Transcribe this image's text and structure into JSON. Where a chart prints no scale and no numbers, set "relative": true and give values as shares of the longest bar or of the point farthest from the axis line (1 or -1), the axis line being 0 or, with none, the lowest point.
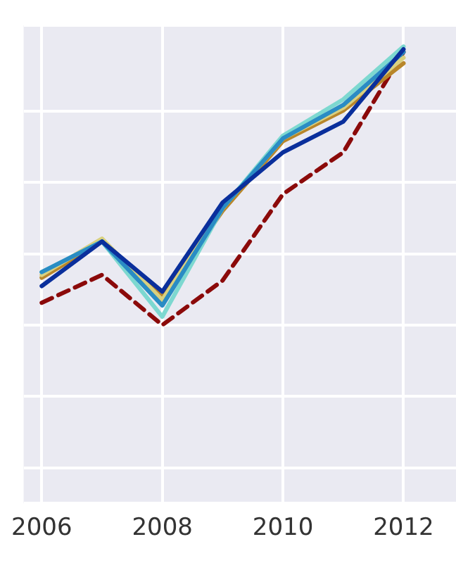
{
  "chart_data": {
    "type": "line",
    "relative": true,
    "grid": true,
    "marker": "none",
    "line_style": "solid",
    "x": [
      2006,
      2007,
      2008,
      2009,
      2010,
      2011,
      2012
    ],
    "xlim": [
      2005.7,
      2012.87
    ],
    "xticks": [
      2006,
      2008,
      2010,
      2012
    ],
    "series": [
      {
        "color": "#0a2f9c",
        "values": [
          0.14,
          0.3,
          0.12,
          0.44,
          0.62,
          0.73,
          0.99
        ]
      },
      {
        "color": "#2a8cc4",
        "values": [
          0.19,
          0.3,
          0.07,
          0.42,
          0.67,
          0.79,
          0.98
        ]
      },
      {
        "color": "#7dd8d0",
        "values": [
          0.19,
          0.3,
          0.03,
          0.42,
          0.68,
          0.81,
          1
        ]
      },
      {
        "color": "#d8d080",
        "values": [
          0.18,
          0.31,
          0.09,
          0.42,
          0.67,
          0.78,
          0.96
        ]
      },
      {
        "color": "#b8862a",
        "values": [
          0.17,
          0.3,
          0.1,
          0.41,
          0.66,
          0.77,
          0.94
        ]
      },
      {
        "color": "#8b0a0a",
        "line_style": "dashed",
        "values": [
          0.08,
          0.18,
          0,
          0.16,
          0.47,
          0.62,
          0.98
        ]
      }
    ]
  }
}
